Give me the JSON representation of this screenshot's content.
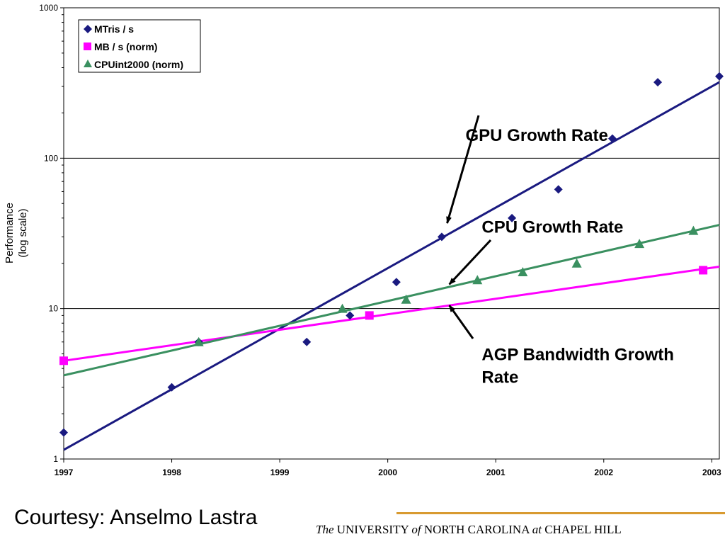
{
  "chart_data": {
    "type": "scatter",
    "ylabel_lines": [
      "Performance",
      "(log scale)"
    ],
    "x_ticks": [
      "1997",
      "1998",
      "1999",
      "2000",
      "2001",
      "2002",
      "2003"
    ],
    "y_ticks": [
      "1",
      "10",
      "100",
      "1000"
    ],
    "y_scale": "log",
    "ylim": [
      1,
      1000
    ],
    "xlim": [
      1997,
      2003.07
    ],
    "grid": "horizontal major",
    "legend_position": "top-left",
    "series": [
      {
        "name": "MTris / s",
        "marker": "diamond",
        "color": "#1a1a80",
        "points": [
          [
            1997.0,
            1.5
          ],
          [
            1998.0,
            3.0
          ],
          [
            1998.25,
            6.0
          ],
          [
            1999.25,
            6.0
          ],
          [
            1999.65,
            9.0
          ],
          [
            2000.08,
            15.0
          ],
          [
            2000.5,
            30.0
          ],
          [
            2001.15,
            40.0
          ],
          [
            2001.58,
            62.0
          ],
          [
            2002.08,
            135.0
          ],
          [
            2002.5,
            320.0
          ],
          [
            2003.07,
            350.0
          ]
        ],
        "trend": [
          [
            1997.0,
            1.15
          ],
          [
            2003.07,
            320.0
          ]
        ]
      },
      {
        "name": "MB / s (norm)",
        "marker": "square",
        "color": "#ff00ff",
        "points": [
          [
            1997.0,
            4.5
          ],
          [
            1999.83,
            9.0
          ],
          [
            2002.92,
            18.0
          ]
        ],
        "trend": [
          [
            1997.0,
            4.5
          ],
          [
            2003.07,
            19.0
          ]
        ]
      },
      {
        "name": "CPUint2000 (norm)",
        "marker": "triangle",
        "color": "#3a9060",
        "points": [
          [
            1998.25,
            6.0
          ],
          [
            1999.58,
            10.0
          ],
          [
            2000.17,
            11.5
          ],
          [
            2000.83,
            15.5
          ],
          [
            2001.25,
            17.5
          ],
          [
            2001.75,
            20.0
          ],
          [
            2002.33,
            27.0
          ],
          [
            2002.83,
            33.0
          ]
        ],
        "trend": [
          [
            1997.0,
            3.6
          ],
          [
            2003.07,
            36.0
          ]
        ]
      }
    ],
    "annotations": [
      {
        "text": "GPU Growth Rate",
        "x": 2000.72,
        "y": 130,
        "arrow_to": [
          2000.55,
          37
        ]
      },
      {
        "text": "CPU Growth Rate",
        "x": 2000.87,
        "y": 32,
        "arrow_to": [
          2000.57,
          14.5
        ]
      },
      {
        "text_lines": [
          "AGP Bandwidth Growth",
          "Rate"
        ],
        "x": 2000.87,
        "y": 4.55,
        "arrow_to": [
          2000.57,
          10.5
        ]
      }
    ]
  },
  "footer": {
    "courtesy": "Courtesy: Anselmo Lastra",
    "university": {
      "the": "The",
      "university": "UNIVERSITY",
      "of": "of",
      "north_carolina": "NORTH CAROLINA",
      "at": "at",
      "chapel_hill": "CHAPEL HILL"
    }
  }
}
